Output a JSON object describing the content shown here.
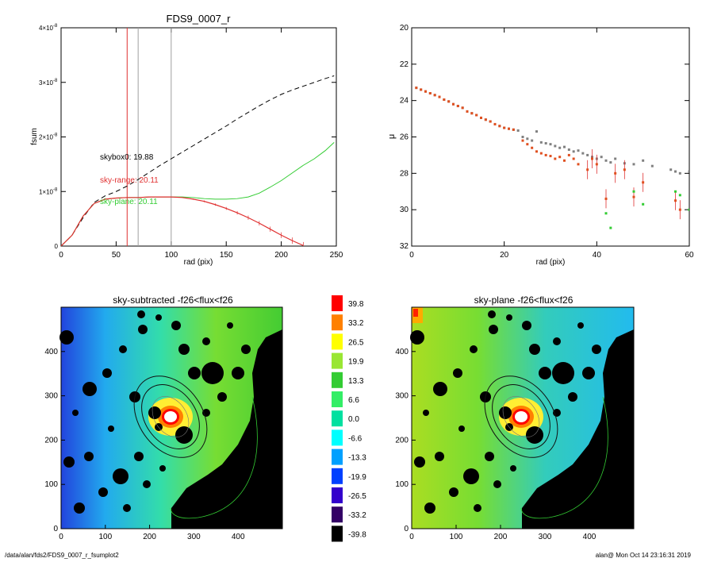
{
  "chart_data": [
    {
      "type": "line",
      "title": "FDS9_0007_r",
      "xlabel": "rad (pix)",
      "ylabel": "fsum",
      "xlim": [
        0,
        250
      ],
      "ylim": [
        0,
        4e-08
      ],
      "x_ticks": [
        0,
        50,
        100,
        150,
        200,
        250
      ],
      "x_tick_labels": [
        "0",
        "50",
        "100",
        "150",
        "200",
        "250"
      ],
      "y_ticks": [
        0,
        1e-08,
        2e-08,
        3e-08,
        4e-08
      ],
      "y_tick_labels": [
        {
          "mant": "0",
          "exp": ""
        },
        {
          "mant": "1×10",
          "exp": "-8"
        },
        {
          "mant": "2×10",
          "exp": "-8"
        },
        {
          "mant": "3×10",
          "exp": "-8"
        },
        {
          "mant": "4×10",
          "exp": "-8"
        }
      ],
      "vertical_lines": [
        {
          "x": 60,
          "color": "#e03030"
        },
        {
          "x": 70,
          "color": "#a0a0a0"
        },
        {
          "x": 100,
          "color": "#a0a0a0"
        }
      ],
      "annotations": [
        {
          "text": "skybox0: 19.88",
          "color": "#000000"
        },
        {
          "text": "sky-range: 20.11",
          "color": "#e03030"
        },
        {
          "text": "sky-plane: 20.11",
          "color": "#33cc33"
        }
      ],
      "series": [
        {
          "style": "dashed",
          "color": "#000000",
          "x": [
            0,
            10,
            20,
            30,
            40,
            50,
            60,
            70,
            80,
            90,
            100,
            110,
            120,
            130,
            140,
            150,
            160,
            170,
            180,
            190,
            200,
            210,
            220,
            230,
            240,
            248
          ],
          "y": [
            0,
            2e-09,
            5.2e-09,
            8e-09,
            9.2e-09,
            1e-08,
            1.1e-08,
            1.22e-08,
            1.35e-08,
            1.48e-08,
            1.6e-08,
            1.72e-08,
            1.84e-08,
            1.96e-08,
            2.08e-08,
            2.2e-08,
            2.33e-08,
            2.45e-08,
            2.57e-08,
            2.68e-08,
            2.78e-08,
            2.86e-08,
            2.93e-08,
            3e-08,
            3.07e-08,
            3.12e-08
          ]
        },
        {
          "style": "solid",
          "color": "#33cc33",
          "x": [
            0,
            10,
            20,
            30,
            40,
            50,
            60,
            70,
            80,
            90,
            100,
            110,
            120,
            130,
            140,
            150,
            160,
            170,
            180,
            190,
            200,
            210,
            220,
            230,
            240,
            248
          ],
          "y": [
            0,
            2e-09,
            5.5e-09,
            7.8e-09,
            8.6e-09,
            8.8e-09,
            8.9e-09,
            8.9e-09,
            9e-09,
            9e-09,
            9e-09,
            9e-09,
            8.9e-09,
            8.7e-09,
            8.6e-09,
            8.6e-09,
            8.7e-09,
            9e-09,
            9.7e-09,
            1.08e-08,
            1.2e-08,
            1.34e-08,
            1.48e-08,
            1.6e-08,
            1.75e-08,
            1.9e-08
          ]
        },
        {
          "style": "errorbars",
          "color": "#e03030",
          "x": [
            0,
            10,
            20,
            30,
            40,
            50,
            60,
            70,
            80,
            90,
            100,
            110,
            120,
            130,
            140,
            150,
            160,
            170,
            180,
            190,
            200,
            210,
            220
          ],
          "y": [
            0,
            2e-09,
            5.5e-09,
            7.8e-09,
            8.6e-09,
            8.8e-09,
            8.9e-09,
            8.9e-09,
            9e-09,
            9e-09,
            9e-09,
            8.9e-09,
            8.6e-09,
            8.2e-09,
            7.6e-09,
            6.9e-09,
            6.1e-09,
            5.2e-09,
            4.2e-09,
            3.1e-09,
            2e-09,
            1e-09,
            1e-10
          ]
        }
      ]
    },
    {
      "type": "scatter",
      "title": "",
      "xlabel": "rad (pix)",
      "ylabel": "μ",
      "xlim": [
        0,
        60
      ],
      "ylim": [
        32,
        20
      ],
      "x_ticks": [
        0,
        20,
        40,
        60
      ],
      "x_tick_labels": [
        "0",
        "20",
        "40",
        "60"
      ],
      "y_ticks": [
        20,
        22,
        24,
        26,
        28,
        30,
        32
      ],
      "y_tick_labels": [
        "20",
        "22",
        "24",
        "26",
        "28",
        "30",
        "32"
      ],
      "series": [
        {
          "color": "#808080",
          "x": [
            1,
            2,
            3,
            4,
            5,
            6,
            7,
            8,
            9,
            10,
            11,
            12,
            13,
            14,
            15,
            16,
            17,
            18,
            19,
            20,
            21,
            22,
            23,
            24,
            25,
            26,
            27,
            28,
            29,
            30,
            31,
            32,
            33,
            34,
            35,
            36,
            37,
            38,
            39,
            40,
            41,
            42,
            43,
            44,
            46,
            48,
            50,
            52,
            56,
            57,
            58,
            60
          ],
          "y": [
            23.3,
            23.4,
            23.5,
            23.6,
            23.7,
            23.8,
            23.95,
            24.05,
            24.2,
            24.3,
            24.4,
            24.6,
            24.7,
            24.8,
            24.95,
            25.05,
            25.15,
            25.3,
            25.4,
            25.5,
            25.55,
            25.6,
            25.65,
            26.0,
            26.1,
            26.2,
            25.7,
            26.3,
            26.35,
            26.4,
            26.5,
            26.6,
            26.55,
            26.7,
            26.8,
            26.75,
            26.9,
            27.0,
            27.1,
            27.2,
            27.1,
            27.3,
            27.4,
            27.2,
            27.45,
            27.5,
            27.3,
            27.6,
            27.8,
            27.9,
            28.0,
            27.9
          ]
        },
        {
          "color": "#e05020",
          "x": [
            1,
            2,
            3,
            4,
            5,
            6,
            7,
            8,
            9,
            10,
            11,
            12,
            13,
            14,
            15,
            16,
            17,
            18,
            19,
            20,
            21,
            22,
            24,
            25,
            26,
            27,
            28,
            29,
            30,
            31,
            32,
            33,
            34,
            35,
            36,
            38,
            39,
            40,
            42,
            44,
            46,
            48,
            50,
            57,
            58
          ],
          "y": [
            23.3,
            23.4,
            23.5,
            23.6,
            23.7,
            23.8,
            23.95,
            24.05,
            24.2,
            24.3,
            24.4,
            24.6,
            24.7,
            24.8,
            24.95,
            25.05,
            25.15,
            25.3,
            25.4,
            25.5,
            25.55,
            25.6,
            26.2,
            26.4,
            26.6,
            26.8,
            26.9,
            27.0,
            27.05,
            27.2,
            27.1,
            27.3,
            27.0,
            27.2,
            27.5,
            27.8,
            27.2,
            27.5,
            29.4,
            28.0,
            27.8,
            29.3,
            28.5,
            29.5,
            30.0
          ]
        },
        {
          "color": "#33cc33",
          "x": [
            42,
            43,
            48,
            50,
            57,
            58,
            60
          ],
          "y": [
            30.2,
            31.0,
            29.0,
            29.7,
            29.0,
            29.2,
            30.0
          ]
        }
      ]
    },
    {
      "type": "heatmap",
      "title": "sky-subtracted -f26<flux<f26",
      "xlim": [
        0,
        500
      ],
      "ylim": [
        0,
        500
      ],
      "x_ticks": [
        0,
        100,
        200,
        300,
        400
      ],
      "y_ticks": [
        0,
        100,
        200,
        300,
        400
      ]
    },
    {
      "type": "heatmap",
      "title": "sky-plane -f26<flux<f26",
      "xlim": [
        0,
        500
      ],
      "ylim": [
        0,
        500
      ],
      "x_ticks": [
        0,
        100,
        200,
        300,
        400
      ],
      "y_ticks": [
        0,
        100,
        200,
        300,
        400
      ]
    }
  ],
  "colorbar": {
    "labels": [
      "39.8",
      "33.2",
      "26.5",
      "19.9",
      "13.3",
      "6.6",
      "0.0",
      "-6.6",
      "-13.3",
      "-19.9",
      "-26.5",
      "-33.2",
      "-39.8"
    ],
    "colors": [
      "#ff0000",
      "#ff8000",
      "#ffff00",
      "#99e633",
      "#33cc33",
      "#33ee66",
      "#00e0a0",
      "#00ffff",
      "#00a0ff",
      "#0040ff",
      "#3300cc",
      "#330066",
      "#000000"
    ]
  },
  "footer": {
    "left": "/data/alan/fds2/FDS9_0007_r_fsumplot2",
    "right": "alan@  Mon Oct 14 23:16:31 2019"
  }
}
